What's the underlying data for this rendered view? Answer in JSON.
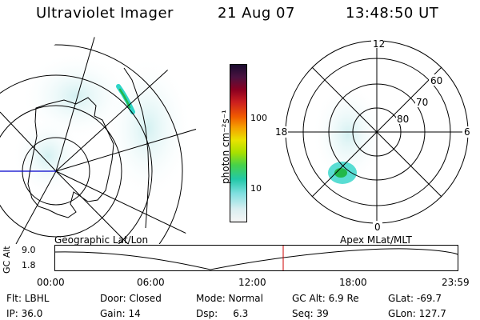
{
  "header": {
    "title": "Ultraviolet Imager",
    "date": "21 Aug 07",
    "time": "13:48:50 UT"
  },
  "colorbar": {
    "unit": "photon cm⁻²s⁻¹",
    "ticks": [
      "100",
      "10"
    ]
  },
  "polar": {
    "lat_labels": [
      "60",
      "70",
      "80"
    ],
    "mlt_labels": {
      "top": "12",
      "left": "18",
      "right": "6",
      "bottom": "0"
    }
  },
  "timeline": {
    "left_title": "Geographic Lat/Lon",
    "right_title": "Apex MLat/MLT",
    "axis_label": "GC Alt",
    "y_ticks": [
      "9.0",
      "1.8"
    ],
    "x_ticks": [
      "00:00",
      "06:00",
      "12:00",
      "18:00",
      "23:59"
    ],
    "current_time": "13:48:50"
  },
  "status": {
    "row1": [
      "Flt: LBHL",
      "Door: Closed",
      "Mode: Normal",
      "GC Alt: 6.9 Re",
      "GLat: -69.7"
    ],
    "row2": [
      "IP: 36.0",
      "Gain: 14",
      "Dsp:     6.3",
      "Seq: 39",
      "GLon: 127.7"
    ]
  },
  "colors": {
    "aurora": "#2fd5c8",
    "aurora_core": "#22b84a",
    "marker": "#cc0000",
    "meridian": "#0000cc"
  }
}
